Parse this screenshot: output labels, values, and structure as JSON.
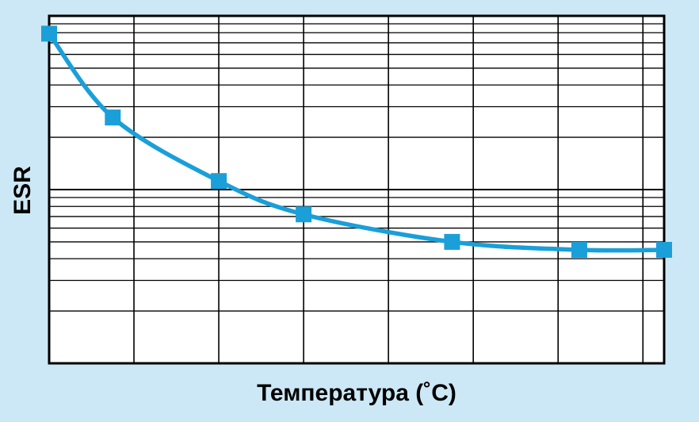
{
  "chart_data": {
    "type": "line",
    "title": "",
    "xlabel": "Температура (˚C)",
    "ylabel": "ESR",
    "xlim": [
      -40,
      105
    ],
    "ylim_log": [
      0.1,
      10
    ],
    "log_y": true,
    "grid": true,
    "tick_labels_shown": false,
    "legend": "none",
    "colors": {
      "background": "#cce8f6",
      "plot": "#ffffff",
      "series": "#1a9fd9",
      "grid": "#000000"
    },
    "series": [
      {
        "x": [
          -40,
          -25,
          0,
          20,
          55,
          85,
          105
        ],
        "y": [
          7.9,
          2.6,
          1.12,
          0.72,
          0.5,
          0.45,
          0.45
        ]
      }
    ]
  }
}
